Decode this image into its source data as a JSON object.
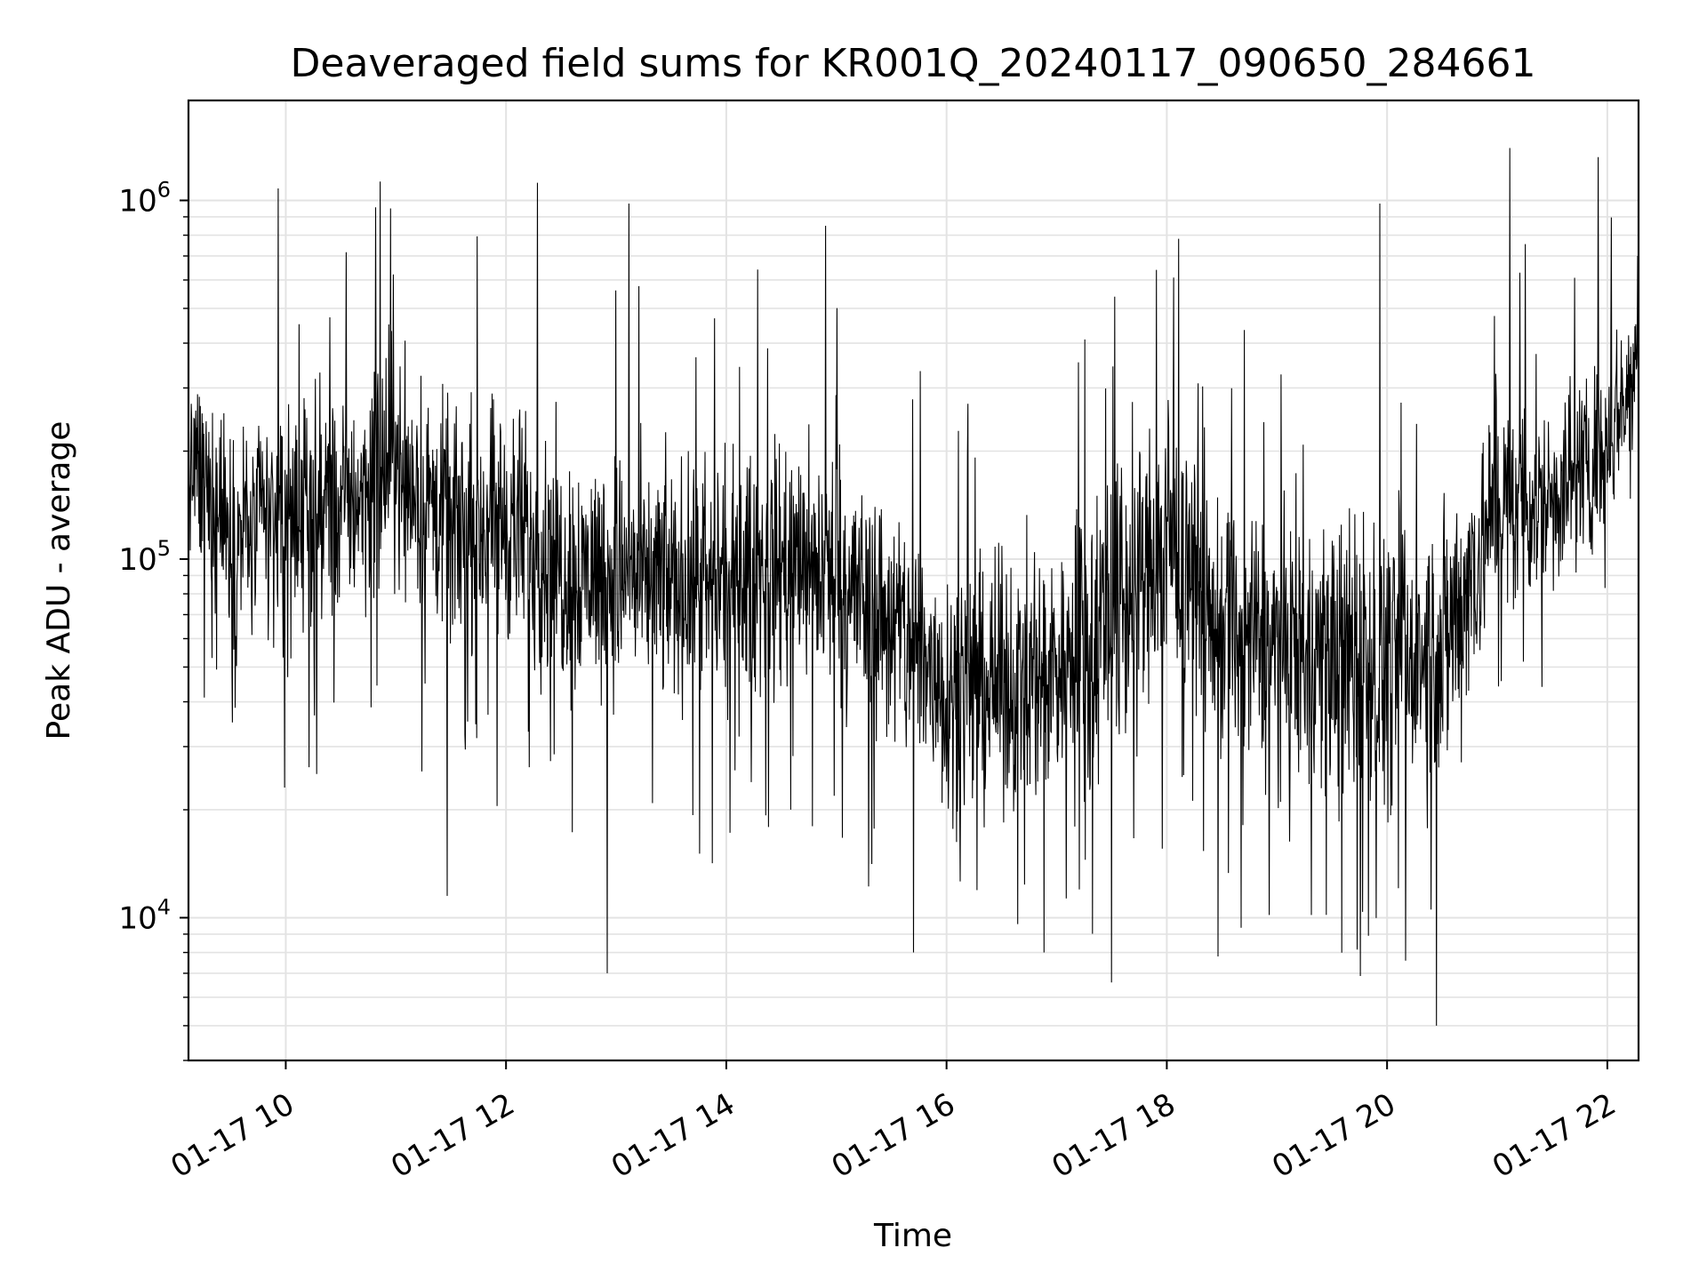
{
  "chart_data": {
    "type": "line",
    "title": "Deaveraged field sums for KR001Q_20240117_090650_284661",
    "xlabel": "Time",
    "ylabel": "Peak ADU - average",
    "yscale": "log",
    "grid": true,
    "line_color": "#000000",
    "x_ticks": [
      "01-17 10",
      "01-17 12",
      "01-17 14",
      "01-17 16",
      "01-17 18",
      "01-17 20",
      "01-17 22"
    ],
    "y_ticks": [
      {
        "value": 10000,
        "base": "10",
        "exp": "4"
      },
      {
        "value": 100000,
        "base": "10",
        "exp": "5"
      },
      {
        "value": 1000000,
        "base": "10",
        "exp": "6"
      }
    ],
    "xlim": [
      "2024-01-17T09:07",
      "2024-01-17T22:17"
    ],
    "ylim": [
      4000,
      1900000
    ],
    "series": [
      {
        "x_start": "2024-01-17T09:07",
        "x_end": "2024-01-17T22:17",
        "envelope": [
          {
            "t": "09:07",
            "low": 90000,
            "high": 400000
          },
          {
            "t": "09:30",
            "low": 40000,
            "high": 350000
          },
          {
            "t": "10:00",
            "low": 40000,
            "high": 400000
          },
          {
            "t": "10:30",
            "low": 50000,
            "high": 380000
          },
          {
            "t": "11:00",
            "low": 60000,
            "high": 600000
          },
          {
            "t": "11:30",
            "low": 40000,
            "high": 350000
          },
          {
            "t": "12:00",
            "low": 40000,
            "high": 400000
          },
          {
            "t": "12:30",
            "low": 30000,
            "high": 300000
          },
          {
            "t": "13:00",
            "low": 30000,
            "high": 280000
          },
          {
            "t": "13:30",
            "low": 28000,
            "high": 260000
          },
          {
            "t": "14:00",
            "low": 28000,
            "high": 260000
          },
          {
            "t": "14:30",
            "low": 30000,
            "high": 320000
          },
          {
            "t": "15:00",
            "low": 28000,
            "high": 280000
          },
          {
            "t": "15:30",
            "low": 20000,
            "high": 220000
          },
          {
            "t": "16:00",
            "low": 13000,
            "high": 150000
          },
          {
            "t": "16:30",
            "low": 14000,
            "high": 140000
          },
          {
            "t": "17:00",
            "low": 15000,
            "high": 170000
          },
          {
            "t": "17:30",
            "low": 15000,
            "high": 300000
          },
          {
            "t": "18:00",
            "low": 30000,
            "high": 400000
          },
          {
            "t": "18:30",
            "low": 18000,
            "high": 220000
          },
          {
            "t": "19:00",
            "low": 15000,
            "high": 200000
          },
          {
            "t": "19:30",
            "low": 14000,
            "high": 210000
          },
          {
            "t": "20:00",
            "low": 13000,
            "high": 200000
          },
          {
            "t": "20:30",
            "low": 14000,
            "high": 220000
          },
          {
            "t": "21:00",
            "low": 50000,
            "high": 400000
          },
          {
            "t": "21:30",
            "low": 60000,
            "high": 380000
          },
          {
            "t": "22:00",
            "low": 90000,
            "high": 500000
          },
          {
            "t": "22:17",
            "low": 200000,
            "high": 700000
          }
        ],
        "spikes": [
          {
            "t": "09:56",
            "y": 1080000
          },
          {
            "t": "10:57",
            "y": 950000
          },
          {
            "t": "12:17",
            "y": 1120000
          },
          {
            "t": "13:07",
            "y": 980000
          },
          {
            "t": "14:54",
            "y": 850000
          },
          {
            "t": "16:53",
            "y": 8000
          },
          {
            "t": "17:30",
            "y": 6600
          },
          {
            "t": "19:56",
            "y": 980000
          },
          {
            "t": "12:55",
            "y": 7000
          },
          {
            "t": "20:27",
            "y": 5000
          },
          {
            "t": "21:07",
            "y": 1400000
          },
          {
            "t": "21:55",
            "y": 1320000
          },
          {
            "t": "15:42",
            "y": 8000
          },
          {
            "t": "11:28",
            "y": 11500
          },
          {
            "t": "18:28",
            "y": 7800
          }
        ]
      }
    ]
  }
}
